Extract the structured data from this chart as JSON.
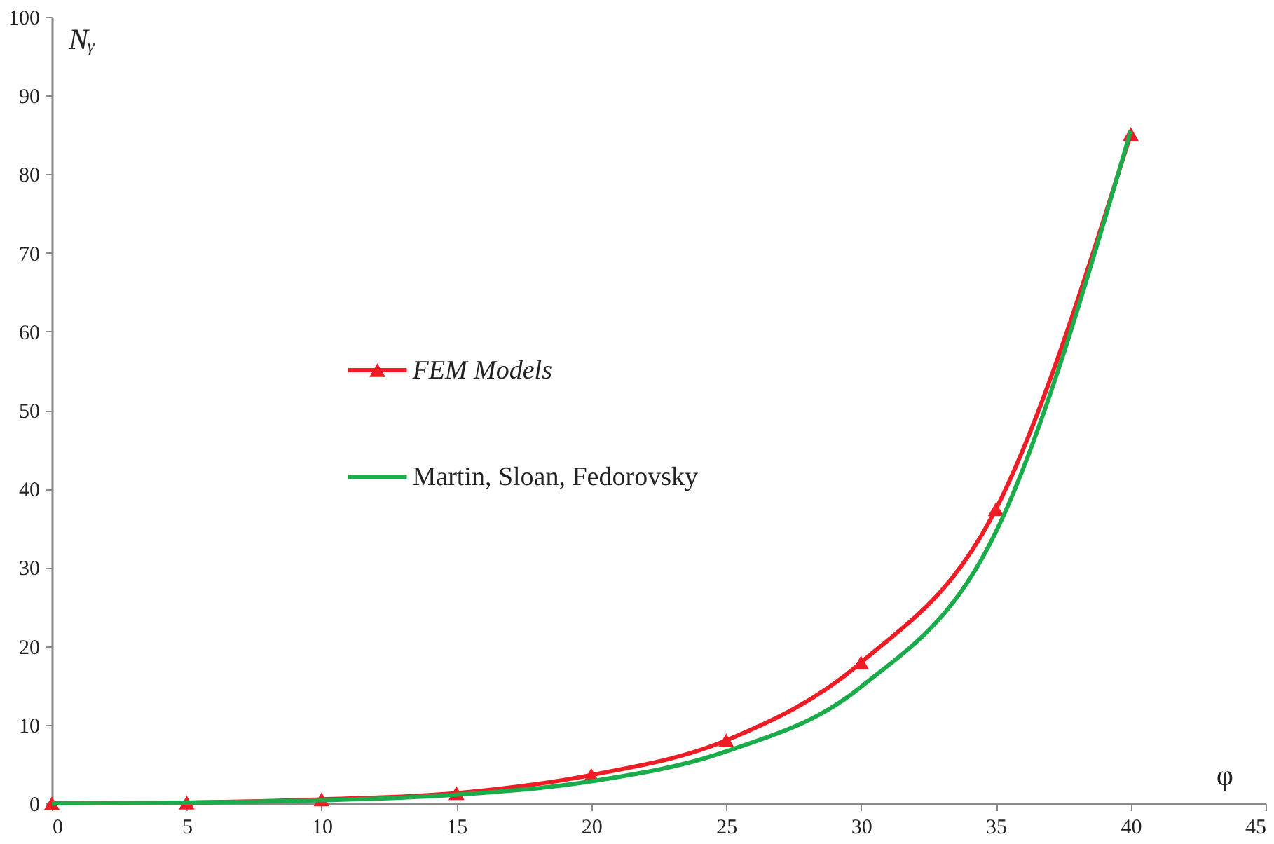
{
  "chart_data": {
    "type": "line",
    "xlabel": "φ",
    "ylabel": "Nᵧ",
    "x": [
      0,
      5,
      10,
      15,
      20,
      25,
      30,
      35,
      40
    ],
    "series": [
      {
        "name": "FEM Models",
        "color": "#ee1c25",
        "marker": "triangle",
        "values": [
          0,
          0.1,
          0.5,
          1.3,
          3.6,
          8.0,
          17.9,
          37.4,
          85.1
        ]
      },
      {
        "name": "Martin, Sloan, Fedorovsky",
        "color": "#1aab4a",
        "marker": "none",
        "values": [
          0,
          0.1,
          0.4,
          1.1,
          2.8,
          6.6,
          14.8,
          34.5,
          85.5
        ]
      }
    ],
    "xlim": [
      0,
      45
    ],
    "xticks": [
      0,
      5,
      10,
      15,
      20,
      25,
      30,
      35,
      40,
      45
    ],
    "ylim": [
      0,
      100
    ],
    "yticks": [
      0,
      10,
      20,
      30,
      40,
      50,
      60,
      70,
      80,
      90,
      100
    ],
    "grid": false,
    "legend": "left",
    "line_style": "solid"
  }
}
